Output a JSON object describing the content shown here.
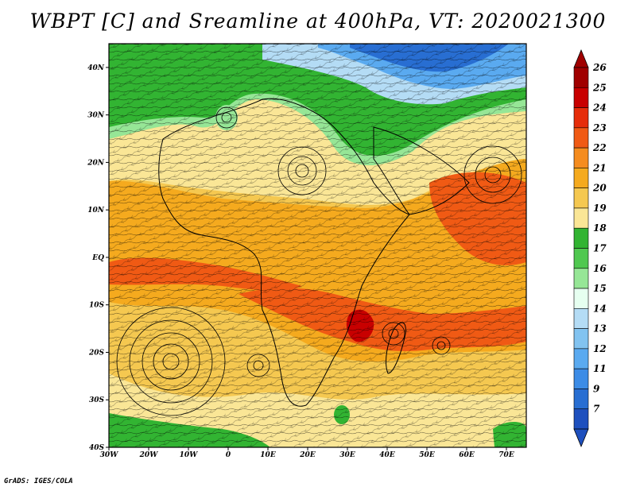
{
  "title": "WBPT [C] and Sreamline at 400hPa, VT: 2020021300",
  "credit": "GrADS: IGES/COLA",
  "map": {
    "lat_ticks": [
      "40N",
      "30N",
      "20N",
      "10N",
      "EQ",
      "10S",
      "20S",
      "30S",
      "40S"
    ],
    "lon_ticks": [
      "30W",
      "20W",
      "10W",
      "0",
      "10E",
      "20E",
      "30E",
      "40E",
      "50E",
      "60E",
      "70E"
    ],
    "extent": {
      "lon_min": -30,
      "lon_max": 75,
      "lat_min": -40,
      "lat_max": 45
    }
  },
  "colorbar": {
    "labels": [
      "26",
      "25",
      "24",
      "23",
      "22",
      "21",
      "20",
      "19",
      "18",
      "17",
      "16",
      "15",
      "14",
      "13",
      "12",
      "11",
      "9",
      "7"
    ],
    "colors": [
      "#a00000",
      "#c80000",
      "#e62d0a",
      "#f05a14",
      "#f58c1e",
      "#f5aa1e",
      "#f5c850",
      "#fae696",
      "#32b432",
      "#50c850",
      "#96e696",
      "#e6fff0",
      "#b4dcf5",
      "#82c3f0",
      "#5aaaf0",
      "#3c8ce6",
      "#286ed2",
      "#1e50be"
    ]
  },
  "colors": {
    "green": "#3cb43c",
    "light_green": "#96e696",
    "blue": "#3c8ce6",
    "yellow": "#fae696",
    "orange": "#f5aa1e",
    "red": "#f05a14"
  }
}
